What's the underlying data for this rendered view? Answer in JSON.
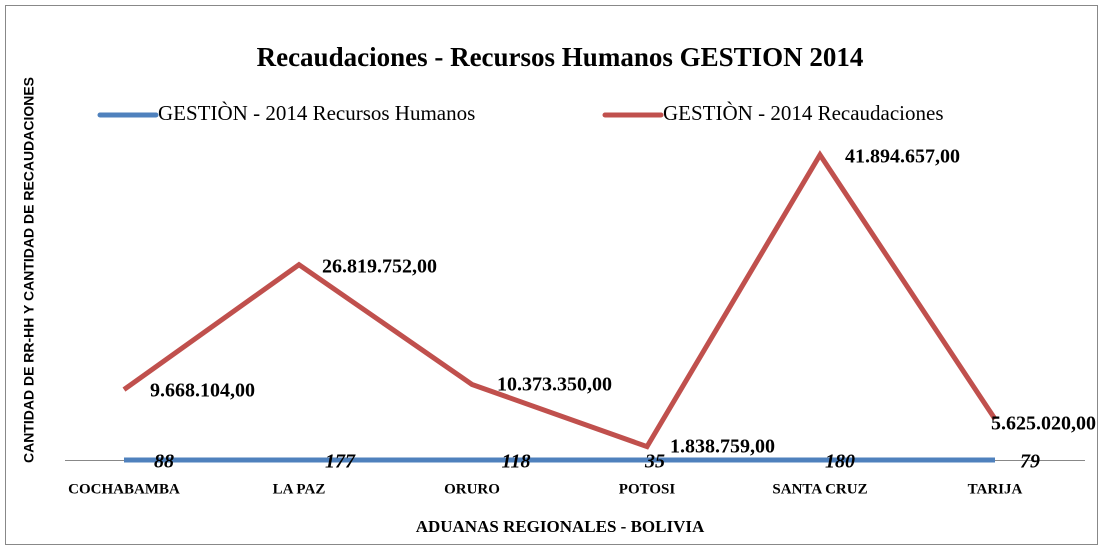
{
  "chart_data": {
    "type": "line",
    "title": "Recaudaciones - Recursos Humanos GESTION 2014",
    "x_label": "ADUANAS REGIONALES - BOLIVIA",
    "y_label": "CANTIDAD DE RR-HH Y CANTIDAD DE RECAUDACIONES",
    "categories": [
      "COCHABAMBA",
      "LA PAZ",
      "ORURO",
      "POTOSI",
      "SANTA CRUZ",
      "TARIJA"
    ],
    "series": [
      {
        "name": "GESTIÒN - 2014 Recursos Humanos",
        "color": "#4f81bd",
        "values": [
          88,
          177,
          118,
          35,
          180,
          79
        ]
      },
      {
        "name": "GESTIÒN - 2014 Recaudaciones",
        "color": "#c0504d",
        "values": [
          9668104,
          26819752,
          10373350,
          1838759,
          41894657,
          5625020
        ],
        "value_labels": [
          "9.668.104,00",
          "26.819.752,00",
          "10.373.350,00",
          "1.838.759,00",
          "41.894.657,00",
          "5.625.020,00"
        ]
      }
    ],
    "ylim": [
      0,
      60000000
    ],
    "legend": "top",
    "grid": false
  }
}
